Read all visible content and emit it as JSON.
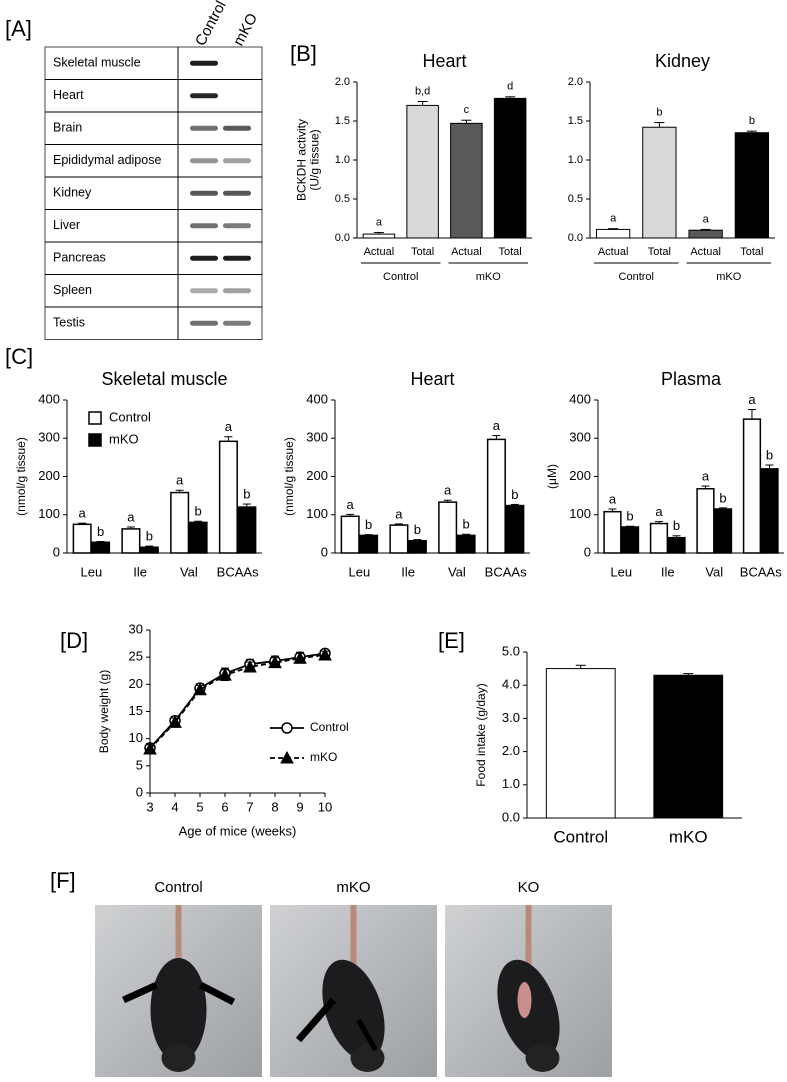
{
  "panels": [
    "[A]",
    "[B]",
    "[C]",
    "[D]",
    "[E]",
    "[F]"
  ],
  "blot": {
    "columns": [
      "Control",
      "mKO"
    ],
    "rows": [
      "Skeletal muscle",
      "Heart",
      "Brain",
      "Epididymal adipose",
      "Kidney",
      "Liver",
      "Pancreas",
      "Spleen",
      "Testis"
    ]
  },
  "photos": [
    "Control",
    "mKO",
    "KO"
  ],
  "chart_data": [
    {
      "type": "bar",
      "title": "Heart",
      "ylabel": [
        "BCKDH activity",
        "(U/g tissue)"
      ],
      "categories": [
        "Actual",
        "Total",
        "Actual",
        "Total"
      ],
      "groups": [
        "Control",
        "mKO"
      ],
      "values": [
        0.05,
        1.7,
        1.47,
        1.79
      ],
      "errors": [
        0.02,
        0.05,
        0.04,
        0.02
      ],
      "letters": [
        "a",
        "b,d",
        "c",
        "d"
      ],
      "colors": [
        "#ffffff",
        "#d9d9d9",
        "#595959",
        "#000000"
      ],
      "ylim": [
        0,
        2
      ],
      "yticks": [
        {
          "value": 0,
          "label": "0.0"
        },
        0.5,
        {
          "value": 1,
          "label": "1.0"
        },
        1.5,
        {
          "value": 2,
          "label": "2.0"
        }
      ]
    },
    {
      "type": "bar",
      "title": "Kidney",
      "categories": [
        "Actual",
        "Total",
        "Actual",
        "Total"
      ],
      "groups": [
        "Control",
        "mKO"
      ],
      "values": [
        0.11,
        1.42,
        0.1,
        1.35
      ],
      "errors": [
        0.01,
        0.06,
        0.01,
        0.02
      ],
      "letters": [
        "a",
        "b",
        "a",
        "b"
      ],
      "colors": [
        "#ffffff",
        "#d9d9d9",
        "#595959",
        "#000000"
      ],
      "ylim": [
        0,
        2
      ],
      "yticks": [
        {
          "value": 0,
          "label": "0.0"
        },
        0.5,
        {
          "value": 1,
          "label": "1.0"
        },
        1.5,
        {
          "value": 2,
          "label": "2.0"
        }
      ]
    },
    {
      "type": "grouped_bar",
      "title": "Skeletal muscle",
      "ylabel": [
        "(nmol/g tissue)"
      ],
      "categories": [
        "Leu",
        "Ile",
        "Val",
        "BCAAs"
      ],
      "legend": "upper left",
      "series": [
        {
          "name": "Control",
          "color": "#ffffff",
          "values": [
            75,
            63,
            158,
            292
          ],
          "errors": [
            3,
            5,
            6,
            12
          ],
          "letters": [
            "a",
            "a",
            "a",
            "a"
          ]
        },
        {
          "name": "mKO",
          "color": "#000000",
          "values": [
            28,
            15,
            80,
            120
          ],
          "errors": [
            2,
            3,
            3,
            8
          ],
          "letters": [
            "b",
            "b",
            "b",
            "b"
          ]
        }
      ],
      "ylim": [
        0,
        400
      ],
      "yticks": [
        0,
        100,
        200,
        300,
        400
      ]
    },
    {
      "type": "grouped_bar",
      "title": "Heart",
      "ylabel": [
        "(nmol/g tissue)"
      ],
      "categories": [
        "Leu",
        "Ile",
        "Val",
        "BCAAs"
      ],
      "series": [
        {
          "color": "#ffffff",
          "values": [
            96,
            73,
            133,
            297
          ],
          "errors": [
            5,
            3,
            5,
            10
          ],
          "letters": [
            "a",
            "a",
            "a",
            "a"
          ]
        },
        {
          "color": "#000000",
          "values": [
            46,
            32,
            46,
            124
          ],
          "errors": [
            2,
            3,
            3,
            3
          ],
          "letters": [
            "b",
            "b",
            "b",
            "b"
          ]
        }
      ],
      "ylim": [
        0,
        400
      ],
      "yticks": [
        0,
        100,
        200,
        300,
        400
      ]
    },
    {
      "type": "grouped_bar",
      "title": "Plasma",
      "ylabel": [
        "(μM)"
      ],
      "categories": [
        "Leu",
        "Ile",
        "Val",
        "BCAAs"
      ],
      "series": [
        {
          "color": "#ffffff",
          "values": [
            108,
            77,
            168,
            350
          ],
          "errors": [
            7,
            5,
            7,
            25
          ],
          "letters": [
            "a",
            "a",
            "a",
            "a"
          ]
        },
        {
          "color": "#000000",
          "values": [
            68,
            40,
            115,
            220
          ],
          "errors": [
            2,
            5,
            3,
            10
          ],
          "letters": [
            "b",
            "b",
            "b",
            "b"
          ]
        }
      ],
      "ylim": [
        0,
        400
      ],
      "yticks": [
        0,
        100,
        200,
        300,
        400
      ]
    },
    {
      "type": "line",
      "xlabel": "Age of mice (weeks)",
      "ylabel": [
        "Body weight (g)"
      ],
      "legend": "right",
      "x": [
        3,
        4,
        5,
        6,
        7,
        8,
        9,
        10
      ],
      "series": [
        {
          "name": "Control",
          "color": "#000000",
          "marker": "circle",
          "dash": false,
          "values": [
            8.3,
            13.3,
            19.3,
            22.0,
            23.7,
            24.3,
            25.0,
            25.7
          ],
          "errors": [
            0.8,
            0.8,
            0.8,
            1.0,
            0.9,
            0.9,
            0.9,
            0.7
          ]
        },
        {
          "name": "mKO",
          "color": "#000000",
          "marker": "triangle",
          "dash": true,
          "values": [
            8.1,
            13.0,
            19.0,
            21.7,
            23.2,
            24.0,
            24.8,
            25.4
          ],
          "errors": [
            0.8,
            0.8,
            0.8,
            1.0,
            0.9,
            0.9,
            0.9,
            0.7
          ]
        }
      ],
      "xlim": [
        3,
        10
      ],
      "xticks": [
        3,
        4,
        5,
        6,
        7,
        8,
        9,
        10
      ],
      "ylim": [
        0,
        30
      ],
      "yticks": [
        0,
        5,
        10,
        15,
        20,
        25,
        30
      ]
    },
    {
      "type": "bar",
      "ylabel": [
        "Food intake (g/day)"
      ],
      "categories": [
        "Control",
        "mKO"
      ],
      "values": [
        4.5,
        4.3
      ],
      "errors": [
        0.1,
        0.05
      ],
      "colors": [
        "#ffffff",
        "#000000"
      ],
      "ylim": [
        0,
        5
      ],
      "yticks": [
        {
          "value": 0,
          "label": "0.0"
        },
        {
          "value": 1,
          "label": "1.0"
        },
        {
          "value": 2,
          "label": "2.0"
        },
        {
          "value": 3,
          "label": "3.0"
        },
        {
          "value": 4,
          "label": "4.0"
        },
        {
          "value": 5,
          "label": "5.0"
        }
      ]
    }
  ]
}
